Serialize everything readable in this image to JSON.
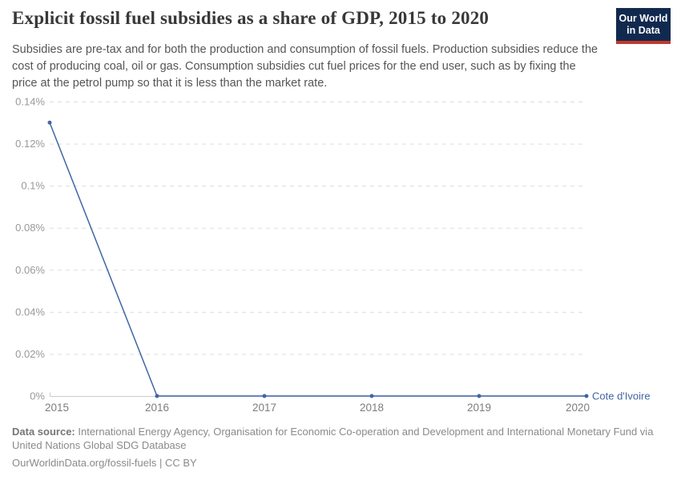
{
  "header": {
    "title": "Explicit fossil fuel subsidies as a share of GDP, 2015 to 2020",
    "subtitle": "Subsidies are pre-tax and for both the production and consumption of fossil fuels. Production subsidies reduce the cost of producing coal, oil or gas. Consumption subsidies cut fuel prices for the end user, such as by fixing the price at the petrol pump so that it is less than the market rate.",
    "logo": {
      "line1": "Our World",
      "line2": "in Data",
      "bg": "#12294F",
      "accent": "#C0392B",
      "text_color": "#FFFFFF"
    }
  },
  "chart_data": {
    "type": "line",
    "title": "Explicit fossil fuel subsidies as a share of GDP, 2015 to 2020",
    "x": [
      2015,
      2016,
      2017,
      2018,
      2019,
      2020
    ],
    "x_ticks": [
      "2015",
      "2016",
      "2017",
      "2018",
      "2019",
      "2020"
    ],
    "series": [
      {
        "name": "Cote d'Ivoire",
        "values": [
          0.13,
          0,
          0,
          0,
          0,
          0
        ],
        "color": "#4165A5"
      }
    ],
    "unit": "%",
    "ylim": [
      0,
      0.14
    ],
    "y_ticks": [
      {
        "value": 0,
        "label": "0%"
      },
      {
        "value": 0.02,
        "label": "0.02%"
      },
      {
        "value": 0.04,
        "label": "0.04%"
      },
      {
        "value": 0.06,
        "label": "0.06%"
      },
      {
        "value": 0.08,
        "label": "0.08%"
      },
      {
        "value": 0.1,
        "label": "0.1%"
      },
      {
        "value": 0.12,
        "label": "0.12%"
      },
      {
        "value": 0.14,
        "label": "0.14%"
      }
    ],
    "xlabel": "",
    "ylabel": "",
    "grid": "horizontal-dashed",
    "legend_position": "end-of-line",
    "axis_color": "#cccccc",
    "grid_color": "#dddddd",
    "y_tick_color": "#999999",
    "x_tick_color": "#7d7d7d"
  },
  "footer": {
    "data_source_label": "Data source:",
    "data_source_text": " International Energy Agency, Organisation for Economic Co-operation and Development and International Monetary Fund via United Nations Global SDG Database",
    "credit_line": "OurWorldinData.org/fossil-fuels | CC BY"
  }
}
